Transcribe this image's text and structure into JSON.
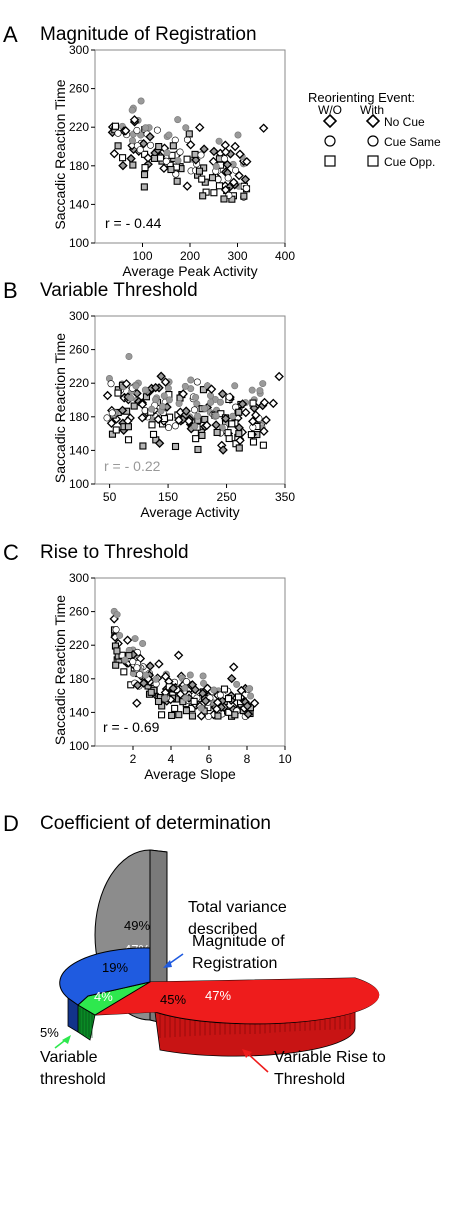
{
  "chart_data": [
    {
      "id": "A",
      "type": "scatter",
      "letter": "A",
      "title": "Magnitude of Registration",
      "xlabel": "Average Peak Activity",
      "ylabel": "Saccadic Reaction Time",
      "xlim": [
        0,
        400
      ],
      "ylim": [
        100,
        300
      ],
      "xticks": [
        100,
        200,
        300,
        400
      ],
      "yticks": [
        100,
        140,
        180,
        220,
        260,
        300
      ],
      "annotation": "r = - 0.44",
      "annotation_color": "#000000",
      "seed": 11,
      "slope": -0.18,
      "intercept": 222,
      "spread": 18,
      "xrange": [
        20,
        320
      ],
      "n": 150,
      "extra_points": [
        [
          355,
          219
        ],
        [
          295,
          200
        ],
        [
          305,
          192
        ],
        [
          275,
          155
        ]
      ]
    },
    {
      "id": "B",
      "type": "scatter",
      "letter": "B",
      "title": "Variable Threshold",
      "xlabel": "Average Activity",
      "ylabel": "Saccadic Reaction Time",
      "xlim": [
        25,
        350
      ],
      "ylim": [
        100,
        300
      ],
      "xticks": [
        50,
        150,
        250,
        350
      ],
      "yticks": [
        100,
        140,
        180,
        220,
        260,
        300
      ],
      "annotation": "r = - 0.22",
      "annotation_color": "#999999",
      "seed": 29,
      "slope": -0.1,
      "intercept": 205,
      "spread": 22,
      "xrange": [
        45,
        320
      ],
      "n": 220,
      "extra_points": [
        [
          340,
          228
        ],
        [
          330,
          196
        ],
        [
          315,
          197
        ],
        [
          300,
          182
        ]
      ]
    },
    {
      "id": "C",
      "type": "scatter",
      "letter": "C",
      "title": "Rise to Threshold",
      "xlabel": "Average Slope",
      "ylabel": "Saccadic Reaction Time",
      "xlim": [
        0,
        10
      ],
      "ylim": [
        100,
        300
      ],
      "xticks": [
        2,
        4,
        6,
        8,
        10
      ],
      "yticks": [
        100,
        140,
        180,
        220,
        260,
        300
      ],
      "annotation": "r = - 0.69",
      "annotation_color": "#000000",
      "seed": 47,
      "curve": true,
      "spread": 15,
      "xrange": [
        1.0,
        8.2
      ],
      "n": 220,
      "extra_points": [
        [
          8.4,
          151
        ],
        [
          7.7,
          166
        ],
        [
          7.3,
          194
        ],
        [
          2.2,
          151
        ],
        [
          4.4,
          208
        ]
      ]
    }
  ],
  "legend": {
    "title": "Reorienting Event:",
    "col_without": "W/O",
    "col_with": "With",
    "items": [
      {
        "shape": "diamond",
        "label": "No Cue"
      },
      {
        "shape": "circle",
        "label": "Cue Same"
      },
      {
        "shape": "square",
        "label": "Cue Opp."
      }
    ]
  },
  "panel_d": {
    "letter": "D",
    "title": "Coefficient of determination",
    "total": {
      "label_line1": "Total variance",
      "label_line2": "described",
      "value_top": "49%",
      "value_bottom": "47%",
      "color": "#8c8c8c"
    },
    "pie": {
      "type": "pie",
      "slices": [
        {
          "name": "Magnitude of Registration",
          "value": 19,
          "label": "19%",
          "color": "#1f5be0",
          "dark": "#0c2c80"
        },
        {
          "name": "Variable Rise to Threshold",
          "value_top": 45,
          "label_top": "45%",
          "label_bottom": "47%",
          "color": "#ee1c1c",
          "dark": "#8a0a0a"
        },
        {
          "name": "Variable threshold",
          "value": 4,
          "label": "4%",
          "outside_label": "5%",
          "color": "#2ee84e",
          "dark": "#0a7020"
        }
      ]
    },
    "callouts": {
      "magnitude_line1": "Magnitude of",
      "magnitude_line2": "Registration",
      "rise_line1": "Variable Rise to",
      "rise_line2": "Threshold",
      "threshold_line1": "Variable",
      "threshold_line2": "threshold"
    }
  }
}
